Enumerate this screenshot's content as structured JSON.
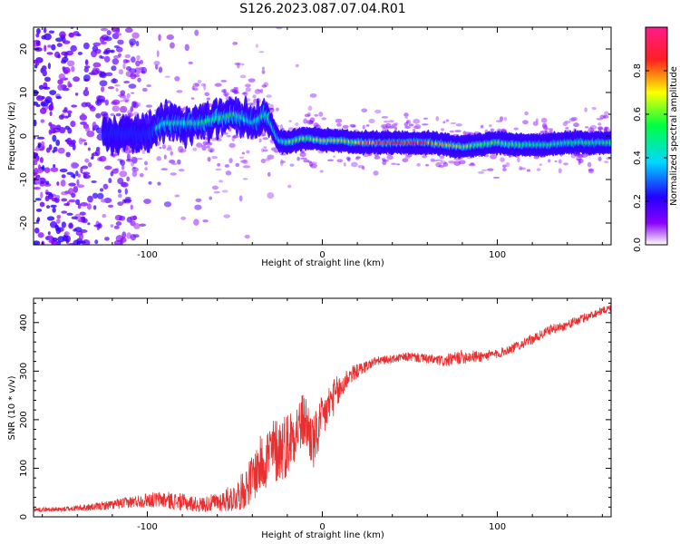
{
  "title": "S126.2023.087.07.04.R01",
  "colors": {
    "background": "#ffffff",
    "snr_line": "#e83030",
    "frame": "#000000"
  },
  "chart_data": [
    {
      "type": "heatmap",
      "xlabel": "Height of straight line (km)",
      "ylabel": "Frequency (Hz)",
      "xlim": [
        -165,
        165
      ],
      "ylim": [
        -25,
        25
      ],
      "xticks": [
        -100,
        0,
        100
      ],
      "yticks": [
        -20,
        -10,
        0,
        10,
        20
      ],
      "grid": false,
      "colorbar": {
        "label": "Normalized spectral amplitude",
        "range": [
          0,
          1
        ],
        "ticks": [
          "0.0",
          "0.2",
          "0.4",
          "0.6",
          "0.8"
        ],
        "colormap": [
          "#ffffff",
          "#8a00ff",
          "#2200ff",
          "#00d8ff",
          "#00ff40",
          "#ffff00",
          "#ff2020",
          "#ff1a8c"
        ]
      },
      "ridge": {
        "x": [
          -120,
          -100,
          -90,
          -80,
          -70,
          -60,
          -50,
          -40,
          -32,
          -25,
          -20,
          -10,
          0,
          10,
          20,
          30,
          40,
          50,
          60,
          70,
          80,
          90,
          100,
          110,
          120,
          130,
          140,
          150,
          160,
          165
        ],
        "y": [
          0.5,
          0.5,
          3,
          3,
          3,
          4,
          5,
          3,
          5,
          -1,
          -1.5,
          -0.5,
          -1,
          -1,
          -1.5,
          -1.5,
          -1.5,
          -1.5,
          -1.5,
          -2,
          -2.5,
          -2,
          -1.5,
          -2,
          -2,
          -2,
          -1.5,
          -1.5,
          -1.5,
          -1.5
        ],
        "amplitude": [
          0.35,
          0.35,
          0.45,
          0.45,
          0.45,
          0.5,
          0.5,
          0.4,
          0.5,
          0.45,
          0.55,
          0.6,
          0.65,
          0.65,
          0.7,
          0.8,
          0.9,
          0.9,
          0.8,
          0.7,
          0.6,
          0.6,
          0.55,
          0.55,
          0.5,
          0.5,
          0.5,
          0.5,
          0.5,
          0.5
        ]
      }
    },
    {
      "type": "line",
      "xlabel": "Height of straight line (km)",
      "ylabel": "SNR (10 * v/v)",
      "xlim": [
        -165,
        165
      ],
      "ylim": [
        0,
        450
      ],
      "xticks": [
        -100,
        0,
        100
      ],
      "yticks": [
        0,
        100,
        200,
        300,
        400
      ],
      "grid": false,
      "series": [
        {
          "x": [
            -165,
            -150,
            -140,
            -130,
            -120,
            -110,
            -100,
            -90,
            -80,
            -70,
            -60,
            -50,
            -45,
            -40,
            -35,
            -30,
            -25,
            -20,
            -15,
            -10,
            -5,
            0,
            5,
            10,
            15,
            20,
            25,
            30,
            40,
            50,
            60,
            70,
            80,
            90,
            100,
            110,
            120,
            130,
            140,
            150,
            160,
            165
          ],
          "values": [
            15,
            15,
            18,
            20,
            25,
            30,
            35,
            35,
            30,
            25,
            30,
            40,
            55,
            80,
            110,
            130,
            140,
            150,
            180,
            200,
            150,
            200,
            240,
            260,
            290,
            300,
            310,
            320,
            325,
            330,
            325,
            320,
            330,
            330,
            335,
            350,
            365,
            385,
            395,
            410,
            425,
            430
          ],
          "noise": [
            4,
            5,
            6,
            8,
            10,
            12,
            15,
            18,
            18,
            15,
            20,
            30,
            40,
            50,
            60,
            70,
            70,
            70,
            60,
            60,
            60,
            50,
            40,
            35,
            20,
            15,
            12,
            10,
            8,
            10,
            10,
            12,
            15,
            12,
            10,
            10,
            10,
            10,
            10,
            10,
            8,
            8
          ]
        }
      ]
    }
  ]
}
